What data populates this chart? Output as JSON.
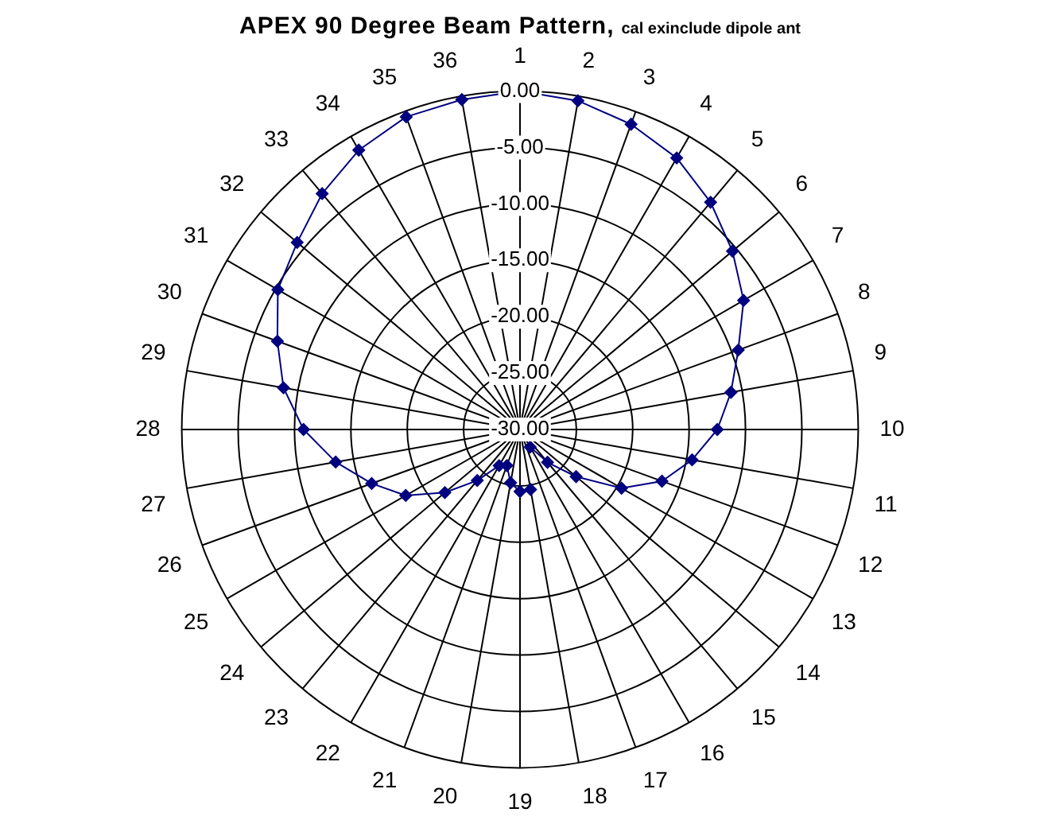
{
  "chart_data": {
    "type": "radar",
    "title": "APEX 90 Degree Beam Pattern,",
    "subtitle": "cal exinclude dipole ant",
    "categories": [
      "1",
      "2",
      "3",
      "4",
      "5",
      "6",
      "7",
      "8",
      "9",
      "10",
      "11",
      "12",
      "13",
      "14",
      "15",
      "16",
      "17",
      "18",
      "19",
      "20",
      "21",
      "22",
      "23",
      "24",
      "25",
      "26",
      "27",
      "28",
      "29",
      "30",
      "31",
      "32",
      "33",
      "34",
      "35",
      "36"
    ],
    "series": [
      {
        "color": "#000080",
        "values": [
          0.0,
          -0.4,
          -1.2,
          -2.2,
          -3.7,
          -5.4,
          -7.1,
          -9.4,
          -11.0,
          -12.5,
          -14.5,
          -16.6,
          -19.6,
          -23.5,
          -26.2,
          -28.2,
          null,
          -24.6,
          -24.5,
          -25.2,
          -26.6,
          -26.3,
          -24.1,
          -21.3,
          -18.3,
          -16.0,
          -13.4,
          -10.8,
          -8.7,
          -7.1,
          -5.2,
          -4.2,
          -2.7,
          -1.4,
          -0.5,
          -0.3
        ]
      }
    ],
    "ylim": [
      -30,
      0
    ],
    "yticks": [
      {
        "value": -30,
        "label": "-30.00"
      },
      {
        "value": -25,
        "label": "-25.00"
      },
      {
        "value": -20,
        "label": "-20.00"
      },
      {
        "value": -15,
        "label": "-15.00"
      },
      {
        "value": -10,
        "label": "-10.00"
      },
      {
        "value": -5,
        "label": "-5.00"
      },
      {
        "value": 0,
        "label": "0.00"
      }
    ],
    "grid": true,
    "legend": false,
    "marker": "diamond",
    "line_style": "solid"
  }
}
